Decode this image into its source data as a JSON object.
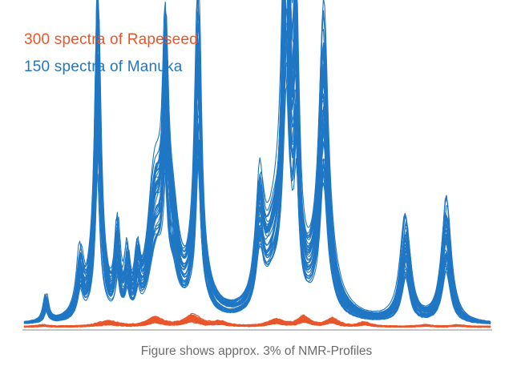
{
  "legend": {
    "rapeseed_label": "300 spectra of Rapeseed",
    "manuka_label": "150 spectra of Manuka"
  },
  "caption": "Figure shows approx. 3% of NMR-Profiles",
  "colors": {
    "rapeseed": "#e8562a",
    "manuka": "#1f77c4",
    "baseline": "#888888",
    "caption": "#6b6b6b"
  },
  "chart_data": {
    "type": "line",
    "title": "",
    "xlabel": "",
    "ylabel": "",
    "axes_visible": false,
    "grid": false,
    "legend_placement": "top-left",
    "xlim": [
      0,
      1
    ],
    "ylim": [
      0,
      1
    ],
    "series": [
      {
        "name": "300 spectra of Rapeseed",
        "color": "#e8562a",
        "baseline": 0.005,
        "peaks": [
          {
            "center": 0.04,
            "height": 0.004,
            "width": 0.012
          },
          {
            "center": 0.18,
            "height": 0.012,
            "width": 0.025
          },
          {
            "center": 0.28,
            "height": 0.02,
            "width": 0.02
          },
          {
            "center": 0.36,
            "height": 0.025,
            "width": 0.02
          },
          {
            "center": 0.42,
            "height": 0.01,
            "width": 0.02
          },
          {
            "center": 0.54,
            "height": 0.016,
            "width": 0.02
          },
          {
            "center": 0.6,
            "height": 0.022,
            "width": 0.015
          },
          {
            "center": 0.66,
            "height": 0.018,
            "width": 0.015
          },
          {
            "center": 0.73,
            "height": 0.01,
            "width": 0.015
          },
          {
            "center": 0.86,
            "height": 0.004,
            "width": 0.015
          },
          {
            "center": 0.93,
            "height": 0.004,
            "width": 0.015
          }
        ]
      },
      {
        "name": "150 spectra of Manuka",
        "color": "#1f77c4",
        "baseline": 0.01,
        "peaks": [
          {
            "center": 0.047,
            "height": 0.06,
            "width": 0.006
          },
          {
            "center": 0.12,
            "height": 0.13,
            "width": 0.008
          },
          {
            "center": 0.158,
            "height": 0.66,
            "width": 0.006
          },
          {
            "center": 0.158,
            "height": 0.15,
            "width": 0.018
          },
          {
            "center": 0.2,
            "height": 0.19,
            "width": 0.006
          },
          {
            "center": 0.222,
            "height": 0.12,
            "width": 0.006
          },
          {
            "center": 0.244,
            "height": 0.11,
            "width": 0.006
          },
          {
            "center": 0.278,
            "height": 0.17,
            "width": 0.015
          },
          {
            "center": 0.288,
            "height": 0.18,
            "width": 0.02
          },
          {
            "center": 0.303,
            "height": 0.52,
            "width": 0.006
          },
          {
            "center": 0.318,
            "height": 0.19,
            "width": 0.015
          },
          {
            "center": 0.373,
            "height": 0.65,
            "width": 0.007
          },
          {
            "center": 0.373,
            "height": 0.12,
            "width": 0.025
          },
          {
            "center": 0.505,
            "height": 0.27,
            "width": 0.01
          },
          {
            "center": 0.53,
            "height": 0.1,
            "width": 0.02
          },
          {
            "center": 0.562,
            "height": 0.96,
            "width": 0.008
          },
          {
            "center": 0.562,
            "height": 0.25,
            "width": 0.025
          },
          {
            "center": 0.583,
            "height": 0.56,
            "width": 0.006
          },
          {
            "center": 0.642,
            "height": 0.55,
            "width": 0.01
          },
          {
            "center": 0.642,
            "height": 0.15,
            "width": 0.025
          },
          {
            "center": 0.818,
            "height": 0.24,
            "width": 0.012
          },
          {
            "center": 0.905,
            "height": 0.28,
            "width": 0.012
          }
        ]
      }
    ]
  }
}
